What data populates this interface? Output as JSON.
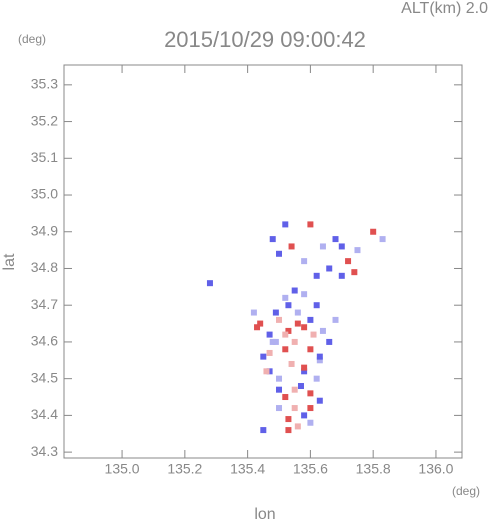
{
  "chart_data": {
    "type": "scatter",
    "title": "2015/10/29 09:00:42",
    "subtitle": "ALT(km) 2.0",
    "x_label": "lon",
    "y_label": "lat",
    "x_unit": "(deg)",
    "y_unit": "(deg)",
    "xlim": [
      134.815,
      136.083
    ],
    "ylim": [
      34.284,
      35.354
    ],
    "xticks": [
      {
        "value": 135,
        "label": "135.0"
      },
      135.2,
      135.4,
      135.6,
      135.8,
      {
        "value": 136,
        "label": "136.0"
      }
    ],
    "yticks": [
      34.3,
      34.4,
      34.5,
      34.6,
      34.7,
      34.8,
      34.9,
      {
        "value": 35,
        "label": "35.0"
      },
      35.1,
      35.2,
      35.3
    ],
    "x": [
      135.28,
      135.42,
      135.44,
      135.47,
      135.5,
      135.53,
      135.56,
      135.58,
      135.6,
      135.62,
      135.64,
      135.55,
      135.52,
      135.48,
      135.45,
      135.6,
      135.63,
      135.66,
      135.58,
      135.54,
      135.5,
      135.47,
      135.57,
      135.6,
      135.62,
      135.52,
      135.55,
      135.58,
      135.5,
      135.53,
      135.56,
      135.6,
      135.63,
      135.55,
      135.58,
      135.5,
      135.53,
      135.47,
      135.49,
      135.52,
      135.55,
      135.58,
      135.61,
      135.56,
      135.52,
      135.49,
      135.46,
      135.43,
      135.45,
      135.53,
      135.6,
      135.63,
      135.68,
      135.7,
      135.72,
      135.66,
      135.62,
      135.58,
      135.54,
      135.5,
      135.48,
      135.52,
      135.6,
      135.68,
      135.75,
      135.8,
      135.83,
      135.7,
      135.74,
      135.64
    ],
    "y": [
      34.76,
      34.68,
      34.65,
      34.62,
      34.66,
      34.7,
      34.68,
      34.64,
      34.66,
      34.7,
      34.63,
      34.6,
      34.58,
      34.6,
      34.56,
      34.58,
      34.55,
      34.6,
      34.52,
      34.54,
      34.5,
      34.52,
      34.48,
      34.46,
      34.5,
      34.45,
      34.42,
      34.4,
      34.42,
      34.39,
      34.37,
      34.38,
      34.44,
      34.47,
      34.53,
      34.47,
      34.63,
      34.57,
      34.68,
      34.72,
      34.74,
      34.73,
      34.62,
      34.65,
      34.62,
      34.6,
      34.52,
      34.64,
      34.36,
      34.36,
      34.42,
      34.56,
      34.66,
      34.86,
      34.82,
      34.8,
      34.78,
      34.82,
      34.86,
      34.84,
      34.88,
      34.92,
      34.92,
      34.88,
      34.85,
      34.9,
      34.88,
      34.78,
      34.79,
      34.86
    ],
    "colors": [
      "#6060e8",
      "#b0b0f0",
      "#e05050",
      "#6060e8",
      "#f0b0b0",
      "#6060e8",
      "#b0b0f0",
      "#e05050",
      "#6060e8",
      "#6060e8",
      "#b0b0f0",
      "#f0b0b0",
      "#e05050",
      "#b0b0f0",
      "#6060e8",
      "#e05050",
      "#b0b0f0",
      "#6060e8",
      "#6060e8",
      "#f0b0b0",
      "#b0b0f0",
      "#6060e8",
      "#6060e8",
      "#e05050",
      "#b0b0f0",
      "#e05050",
      "#f0b0b0",
      "#6060e8",
      "#b0b0f0",
      "#e05050",
      "#f0b0b0",
      "#b0b0f0",
      "#6060e8",
      "#f0b0b0",
      "#e05050",
      "#6060e8",
      "#e05050",
      "#f0b0b0",
      "#6060e8",
      "#b0b0f0",
      "#6060e8",
      "#b0b0f0",
      "#f0b0b0",
      "#e05050",
      "#f0b0b0",
      "#b0b0f0",
      "#f0b0b0",
      "#e05050",
      "#6060e8",
      "#e05050",
      "#e05050",
      "#6060e8",
      "#b0b0f0",
      "#6060e8",
      "#e05050",
      "#6060e8",
      "#6060e8",
      "#b0b0f0",
      "#e05050",
      "#6060e8",
      "#6060e8",
      "#6060e8",
      "#e05050",
      "#6060e8",
      "#b0b0f0",
      "#e05050",
      "#b0b0f0",
      "#6060e8",
      "#e05050",
      "#b0b0f0"
    ]
  }
}
